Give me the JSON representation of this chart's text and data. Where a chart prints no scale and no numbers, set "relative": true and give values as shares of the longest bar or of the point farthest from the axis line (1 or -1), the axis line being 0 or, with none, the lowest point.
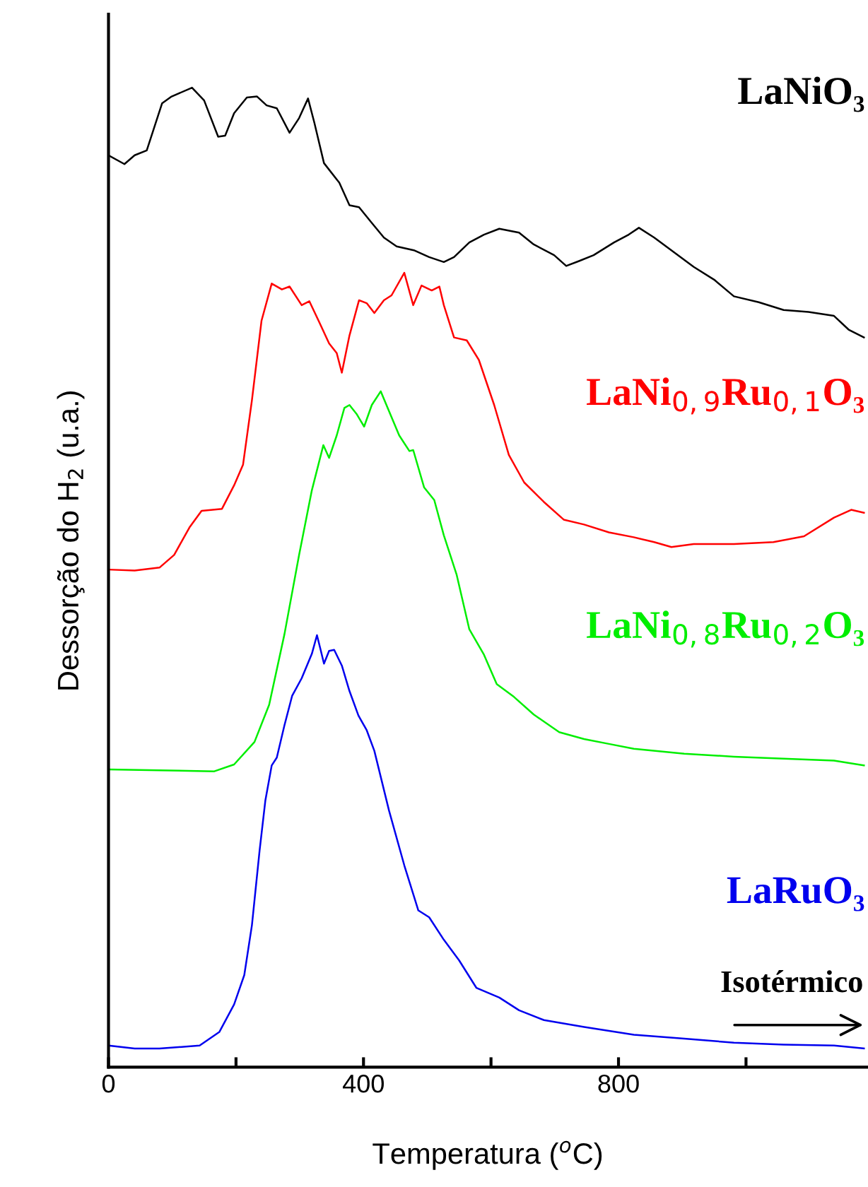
{
  "chart_data": {
    "type": "line",
    "relative": true,
    "xlabel": "Temperatura ($^{o}$C)",
    "ylabel": "Dessorção do H$_{2}$ (u.a.)",
    "xlim": [
      0,
      1190
    ],
    "xticks": [
      0,
      {
        "value": 200,
        "label": null
      },
      400,
      {
        "value": 600,
        "label": null
      },
      800,
      {
        "value": 1000,
        "label": null
      }
    ],
    "tick_labels": "x",
    "grid": false,
    "legend": false,
    "marker": "none",
    "line_style": "solid",
    "annotations": [
      "Isotérmico"
    ],
    "series": [
      {
        "name": "LaNiO₃",
        "color": "#000000",
        "x": [
          0,
          25,
          41,
          60,
          84,
          99,
          131,
          150,
          172,
          183,
          197,
          217,
          233,
          248,
          264,
          284,
          299,
          313,
          323,
          338,
          362,
          378,
          393,
          413,
          432,
          452,
          479,
          503,
          526,
          542,
          566,
          589,
          613,
          644,
          667,
          699,
          718,
          738,
          761,
          793,
          816,
          832,
          856,
          887,
          918,
          950,
          981,
          1020,
          1059,
          1098,
          1138,
          1161,
          1185
        ],
        "values": [
          0.931,
          0.922,
          0.931,
          0.936,
          0.984,
          0.991,
          1.0,
          0.987,
          0.95,
          0.951,
          0.974,
          0.99,
          0.991,
          0.982,
          0.979,
          0.954,
          0.969,
          0.989,
          0.964,
          0.923,
          0.903,
          0.88,
          0.878,
          0.862,
          0.847,
          0.838,
          0.834,
          0.827,
          0.822,
          0.827,
          0.842,
          0.85,
          0.856,
          0.852,
          0.84,
          0.829,
          0.818,
          0.823,
          0.829,
          0.842,
          0.85,
          0.857,
          0.847,
          0.832,
          0.817,
          0.804,
          0.787,
          0.781,
          0.773,
          0.771,
          0.767,
          0.753,
          0.745
        ]
      },
      {
        "name": "LaNi$_{0,9}$Ru$_{0,1}$O₃",
        "color": "#ff0000",
        "x": [
          0,
          41,
          80,
          103,
          127,
          146,
          178,
          197,
          211,
          225,
          240,
          256,
          272,
          284,
          303,
          315,
          331,
          346,
          358,
          366,
          378,
          393,
          405,
          417,
          432,
          444,
          464,
          478,
          491,
          507,
          519,
          526,
          542,
          562,
          581,
          605,
          628,
          652,
          683,
          714,
          746,
          785,
          824,
          856,
          883,
          918,
          981,
          1043,
          1091,
          1138,
          1165,
          1185
        ],
        "values": [
          0.508,
          0.507,
          0.51,
          0.523,
          0.551,
          0.568,
          0.57,
          0.594,
          0.615,
          0.681,
          0.762,
          0.8,
          0.794,
          0.797,
          0.778,
          0.782,
          0.76,
          0.739,
          0.729,
          0.709,
          0.747,
          0.783,
          0.78,
          0.77,
          0.783,
          0.788,
          0.811,
          0.778,
          0.798,
          0.793,
          0.797,
          0.778,
          0.745,
          0.742,
          0.722,
          0.676,
          0.625,
          0.597,
          0.577,
          0.559,
          0.554,
          0.546,
          0.541,
          0.536,
          0.531,
          0.534,
          0.534,
          0.536,
          0.542,
          0.561,
          0.569,
          0.566
        ]
      },
      {
        "name": "LaNi$_{0,8}$Ru$_{0,2}$O₃",
        "color": "#00ee00",
        "x": [
          0,
          80,
          166,
          197,
          229,
          252,
          276,
          299,
          319,
          337,
          346,
          358,
          370,
          378,
          389,
          401,
          413,
          427,
          436,
          456,
          472,
          478,
          495,
          511,
          526,
          546,
          566,
          589,
          609,
          636,
          667,
          707,
          746,
          785,
          824,
          903,
          981,
          1059,
          1138,
          1185
        ],
        "values": [
          0.304,
          0.303,
          0.302,
          0.309,
          0.332,
          0.37,
          0.442,
          0.523,
          0.589,
          0.635,
          0.622,
          0.645,
          0.673,
          0.676,
          0.667,
          0.654,
          0.676,
          0.69,
          0.676,
          0.645,
          0.629,
          0.63,
          0.592,
          0.579,
          0.543,
          0.503,
          0.447,
          0.421,
          0.391,
          0.378,
          0.36,
          0.342,
          0.335,
          0.33,
          0.325,
          0.32,
          0.317,
          0.315,
          0.313,
          0.308
        ]
      },
      {
        "name": "LaRuO₃",
        "color": "#0000ee",
        "x": [
          0,
          41,
          80,
          143,
          174,
          197,
          213,
          225,
          237,
          246,
          256,
          264,
          276,
          288,
          303,
          319,
          327,
          332,
          338,
          346,
          354,
          366,
          378,
          392,
          405,
          417,
          440,
          464,
          486,
          503,
          526,
          550,
          577,
          613,
          644,
          683,
          746,
          824,
          903,
          981,
          1059,
          1138,
          1185
        ],
        "values": [
          0.022,
          0.019,
          0.019,
          0.022,
          0.036,
          0.064,
          0.094,
          0.145,
          0.221,
          0.272,
          0.308,
          0.316,
          0.349,
          0.379,
          0.397,
          0.422,
          0.441,
          0.428,
          0.412,
          0.425,
          0.426,
          0.41,
          0.384,
          0.359,
          0.344,
          0.323,
          0.262,
          0.206,
          0.16,
          0.153,
          0.13,
          0.109,
          0.081,
          0.071,
          0.058,
          0.048,
          0.041,
          0.033,
          0.029,
          0.025,
          0.023,
          0.022,
          0.019
        ]
      }
    ]
  }
}
